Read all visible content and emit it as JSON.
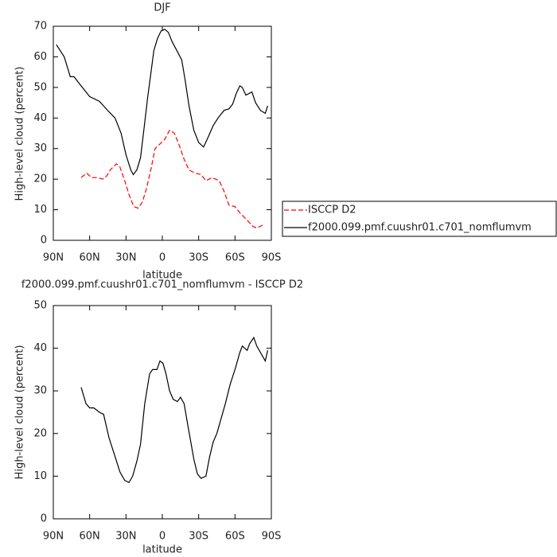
{
  "chart_data": [
    {
      "type": "line",
      "title": "DJF",
      "xlabel": "latitude",
      "ylabel": "High-level cloud (percent)",
      "xlim": [
        90,
        -90
      ],
      "xticks": [
        {
          "value": 90,
          "label": "90N"
        },
        {
          "value": 60,
          "label": "60N"
        },
        {
          "value": 30,
          "label": "30N"
        },
        0,
        {
          "value": -30,
          "label": "30S"
        },
        {
          "value": -60,
          "label": "60S"
        },
        {
          "value": -90,
          "label": "90S"
        }
      ],
      "ylim": [
        0,
        70
      ],
      "yticks": [
        0,
        10,
        20,
        30,
        40,
        50,
        60,
        70
      ],
      "series": [
        {
          "name": "ISCCP D2",
          "color": "#ff0000",
          "linestyle": "dashed",
          "x": [
            67,
            62.5,
            58.5,
            54,
            49,
            46,
            43,
            38,
            35,
            31.5,
            27.5,
            23.5,
            20,
            16.5,
            13,
            9,
            6,
            2,
            -2,
            -6,
            -10,
            -14,
            -18,
            -22,
            -27,
            -32,
            -36,
            -41,
            -47,
            -51,
            -55,
            -60,
            -64,
            -69,
            -75,
            -78,
            -83
          ],
          "values": [
            20.5,
            22,
            20.5,
            20.5,
            20,
            21,
            23,
            25,
            24,
            20,
            15,
            11,
            10.5,
            12.5,
            17,
            24,
            30,
            31.5,
            33,
            36,
            35,
            31,
            26.5,
            23,
            22,
            21.5,
            19.5,
            20.5,
            19.5,
            16,
            11.5,
            11,
            9,
            7,
            4.5,
            4,
            5
          ]
        },
        {
          "name": "f2000.099.pmf.cuushr01.c701_nomflumvm",
          "color": "#000000",
          "linestyle": "solid",
          "x": [
            87.5,
            81,
            76,
            73,
            66,
            60,
            52,
            44,
            39,
            34,
            30,
            26,
            24,
            21,
            18,
            15,
            12,
            9,
            7,
            4,
            1,
            -2,
            -5,
            -8,
            -12,
            -16,
            -19,
            -22,
            -26,
            -30,
            -34,
            -37,
            -42,
            -46,
            -51,
            -55,
            -58,
            -61,
            -64,
            -66,
            -69,
            -74,
            -77,
            -81,
            -85,
            -87
          ],
          "values": [
            64,
            60,
            53.5,
            53.5,
            50,
            47,
            45.5,
            42,
            40,
            35,
            28,
            23,
            21.5,
            23,
            27,
            37,
            47,
            56,
            62,
            66,
            68.5,
            69,
            68,
            65,
            62,
            59,
            52,
            44,
            36,
            32,
            30.5,
            33,
            37.5,
            40,
            42.5,
            43,
            44.5,
            48,
            50.5,
            50,
            47.5,
            48.5,
            45,
            42.5,
            41.5,
            44
          ]
        }
      ],
      "legend": "right"
    },
    {
      "type": "line",
      "title": "f2000.099.pmf.cuushr01.c701_nomflumvm - ISCCP D2",
      "xlabel": "latitude",
      "ylabel": "High-level cloud (percent)",
      "xlim": [
        90,
        -90
      ],
      "xticks": [
        {
          "value": 90,
          "label": "90N"
        },
        {
          "value": 60,
          "label": "60N"
        },
        {
          "value": 30,
          "label": "30N"
        },
        0,
        {
          "value": -30,
          "label": "30S"
        },
        {
          "value": -60,
          "label": "60S"
        },
        {
          "value": -90,
          "label": "90S"
        }
      ],
      "ylim": [
        0,
        50
      ],
      "yticks": [
        0,
        10,
        20,
        30,
        40,
        50
      ],
      "color": "#000000",
      "x": [
        67,
        63,
        60,
        56.5,
        52,
        48.5,
        44,
        39.5,
        35,
        31,
        27.5,
        24.5,
        21,
        18,
        14.5,
        10.5,
        8,
        4.5,
        2,
        -0.5,
        -3,
        -6,
        -9,
        -12.5,
        -15,
        -18,
        -21,
        -26,
        -29,
        -32,
        -36,
        -39,
        -42,
        -45,
        -48,
        -52,
        -56,
        -60,
        -64,
        -66,
        -70,
        -72,
        -75.5,
        -78,
        -82,
        -85,
        -87
      ],
      "values": [
        30.8,
        27,
        26,
        26,
        25,
        24.5,
        19,
        15,
        11,
        9,
        8.5,
        10,
        13.5,
        17.5,
        27,
        34,
        35,
        35,
        37,
        36.5,
        34,
        30,
        28,
        27.5,
        28.5,
        27,
        22,
        14,
        10.5,
        9.5,
        10,
        14.5,
        18,
        20,
        23,
        27,
        31.5,
        35,
        39,
        40.5,
        39.5,
        41,
        42.5,
        40.5,
        38.5,
        37,
        39.5
      ]
    }
  ]
}
